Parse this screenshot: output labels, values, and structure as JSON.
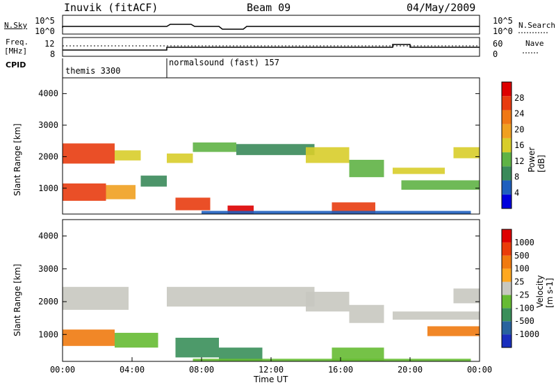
{
  "header": {
    "station": "Inuvik (fitACF)",
    "beam": "Beam 09",
    "date": "04/May/2009"
  },
  "left_labels": {
    "nsky": "N.Sky",
    "freq_line1": "Freq.",
    "freq_line2": "[MHz]",
    "cpid": "CPID"
  },
  "right_labels": {
    "nsearch": "N.Search",
    "nave": "Nave"
  },
  "top_axes": {
    "nsky_ticks": [
      "10^5",
      "10^0"
    ],
    "freq_ticks": [
      "12",
      "8"
    ],
    "nave_ticks": [
      "60",
      "0"
    ]
  },
  "cpid": [
    {
      "name": "themis 3300",
      "start": "00:00"
    },
    {
      "name": "normalsound (fast) 157",
      "start": "06:00"
    }
  ],
  "colors": {
    "power": [
      "#0000dd",
      "#1e5fbe",
      "#3a8a5a",
      "#5fb345",
      "#d8cd2a",
      "#f0a020",
      "#f07814",
      "#e83c10",
      "#dd0000"
    ],
    "velocity": [
      "#1a2fbd",
      "#28639e",
      "#3a8f5a",
      "#66bb33",
      "#c8c8c0",
      "#ffa820",
      "#f07a10",
      "#ea3c0a",
      "#dd0000"
    ]
  },
  "chart_data": [
    {
      "type": "heatmap",
      "title": "Power",
      "xlabel": "",
      "ylabel": "Slant Range [km]",
      "ylim": [
        180,
        4500
      ],
      "yticks": [
        "4000",
        "3000",
        "2000",
        "1000"
      ],
      "colorbar_label": "Power [dB]",
      "colorbar_ticks": [
        "28",
        "24",
        "20",
        "16",
        "12",
        "8",
        "4"
      ],
      "bands": [
        {
          "start": 0.0,
          "end": 3.0,
          "lo": 1780,
          "hi": 2420,
          "level": 7
        },
        {
          "start": 3.0,
          "end": 4.5,
          "lo": 1880,
          "hi": 2200,
          "level": 4
        },
        {
          "start": 0.0,
          "end": 2.5,
          "lo": 600,
          "hi": 1150,
          "level": 7
        },
        {
          "start": 2.5,
          "end": 4.2,
          "lo": 650,
          "hi": 1100,
          "level": 5
        },
        {
          "start": 4.5,
          "end": 6.0,
          "lo": 1050,
          "hi": 1400,
          "level": 2
        },
        {
          "start": 6.0,
          "end": 7.5,
          "lo": 1800,
          "hi": 2100,
          "level": 4
        },
        {
          "start": 7.5,
          "end": 10.0,
          "lo": 2150,
          "hi": 2450,
          "level": 3
        },
        {
          "start": 10.0,
          "end": 14.5,
          "lo": 2050,
          "hi": 2400,
          "level": 2
        },
        {
          "start": 14.0,
          "end": 16.5,
          "lo": 1800,
          "hi": 2300,
          "level": 4
        },
        {
          "start": 16.5,
          "end": 18.5,
          "lo": 1350,
          "hi": 1900,
          "level": 3
        },
        {
          "start": 19.0,
          "end": 22.0,
          "lo": 1450,
          "hi": 1650,
          "level": 4
        },
        {
          "start": 19.5,
          "end": 24.0,
          "lo": 950,
          "hi": 1250,
          "level": 3
        },
        {
          "start": 22.5,
          "end": 24.0,
          "lo": 1950,
          "hi": 2300,
          "level": 4
        },
        {
          "start": 6.5,
          "end": 8.5,
          "lo": 300,
          "hi": 700,
          "level": 7
        },
        {
          "start": 9.5,
          "end": 11.0,
          "lo": 180,
          "hi": 450,
          "level": 8
        },
        {
          "start": 15.5,
          "end": 18.0,
          "lo": 180,
          "hi": 550,
          "level": 7
        },
        {
          "start": 8.0,
          "end": 23.5,
          "lo": 180,
          "hi": 280,
          "level": 1
        }
      ]
    },
    {
      "type": "heatmap",
      "title": "Velocity",
      "xlabel": "Time UT",
      "ylabel": "Slant Range [km]",
      "ylim": [
        180,
        4500
      ],
      "yticks": [
        "4000",
        "3000",
        "2000",
        "1000"
      ],
      "colorbar_label": "Velocity [m s-1]",
      "colorbar_ticks": [
        "1000",
        "500",
        "100",
        "25",
        "-25",
        "-100",
        "-500",
        "-1000"
      ],
      "xticks": [
        "00:00",
        "04:00",
        "08:00",
        "12:00",
        "16:00",
        "20:00",
        "00:00"
      ],
      "bands": [
        {
          "start": 0.0,
          "end": 3.8,
          "lo": 1750,
          "hi": 2450,
          "level": 4
        },
        {
          "start": 0.0,
          "end": 3.0,
          "lo": 650,
          "hi": 1150,
          "level": 6
        },
        {
          "start": 3.0,
          "end": 5.5,
          "lo": 600,
          "hi": 1050,
          "level": 3
        },
        {
          "start": 6.0,
          "end": 14.5,
          "lo": 1850,
          "hi": 2450,
          "level": 4
        },
        {
          "start": 14.0,
          "end": 16.5,
          "lo": 1700,
          "hi": 2300,
          "level": 4
        },
        {
          "start": 16.5,
          "end": 18.5,
          "lo": 1350,
          "hi": 1900,
          "level": 4
        },
        {
          "start": 19.0,
          "end": 24.0,
          "lo": 1450,
          "hi": 1700,
          "level": 4
        },
        {
          "start": 21.0,
          "end": 24.0,
          "lo": 950,
          "hi": 1250,
          "level": 6
        },
        {
          "start": 22.5,
          "end": 24.0,
          "lo": 1950,
          "hi": 2400,
          "level": 4
        },
        {
          "start": 6.5,
          "end": 9.0,
          "lo": 300,
          "hi": 900,
          "level": 2
        },
        {
          "start": 9.0,
          "end": 11.5,
          "lo": 200,
          "hi": 600,
          "level": 2
        },
        {
          "start": 15.5,
          "end": 18.5,
          "lo": 200,
          "hi": 600,
          "level": 3
        },
        {
          "start": 7.5,
          "end": 23.5,
          "lo": 180,
          "hi": 260,
          "level": 3
        }
      ]
    }
  ]
}
